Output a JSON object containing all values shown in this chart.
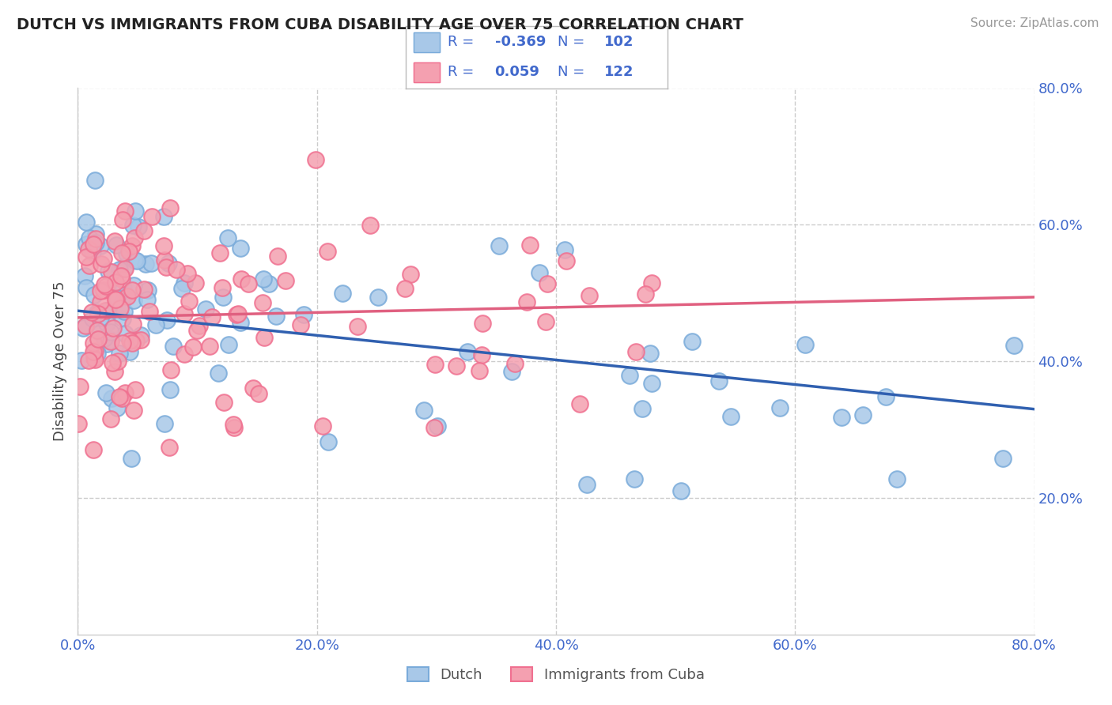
{
  "title": "DUTCH VS IMMIGRANTS FROM CUBA DISABILITY AGE OVER 75 CORRELATION CHART",
  "source": "Source: ZipAtlas.com",
  "ylabel": "Disability Age Over 75",
  "blue_label": "Dutch",
  "pink_label": "Immigrants from Cuba",
  "blue_R": "-0.369",
  "blue_N": "102",
  "pink_R": "0.059",
  "pink_N": "122",
  "blue_color": "#a8c8e8",
  "pink_color": "#f4a0b0",
  "blue_edge_color": "#7aabda",
  "pink_edge_color": "#f07090",
  "trend_blue_color": "#3060b0",
  "trend_pink_color": "#e06080",
  "axis_color": "#4169cc",
  "legend_text_color": "#4169cc",
  "background_color": "#ffffff",
  "xlim": [
    0.0,
    0.8
  ],
  "ylim": [
    0.0,
    0.8
  ],
  "x_ticks": [
    0.0,
    0.2,
    0.4,
    0.6,
    0.8
  ],
  "y_ticks": [
    0.2,
    0.4,
    0.6,
    0.8
  ],
  "x_tick_labels": [
    "0.0%",
    "20.0%",
    "40.0%",
    "60.0%",
    "80.0%"
  ],
  "y_tick_labels": [
    "20.0%",
    "40.0%",
    "60.0%",
    "80.0%"
  ],
  "blue_trend_x0": 0.0,
  "blue_trend_y0": 0.474,
  "blue_trend_x1": 0.8,
  "blue_trend_y1": 0.33,
  "pink_trend_x0": 0.0,
  "pink_trend_y0": 0.464,
  "pink_trend_x1": 0.8,
  "pink_trend_y1": 0.494
}
